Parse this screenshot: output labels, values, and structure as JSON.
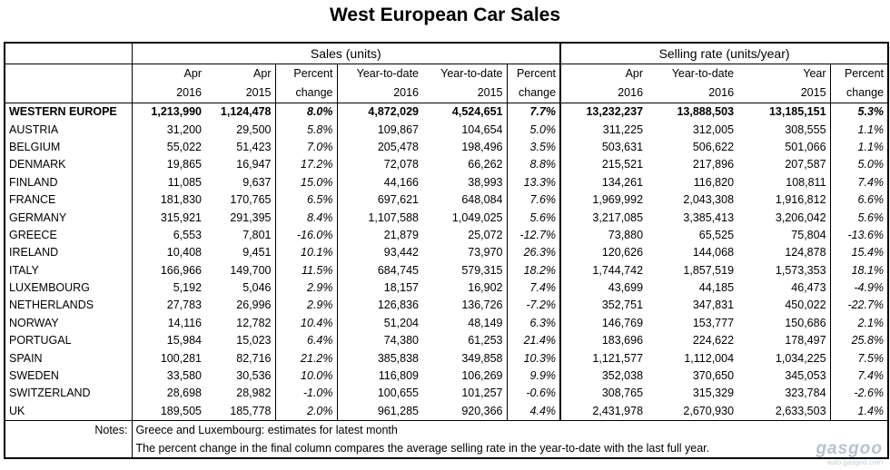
{
  "title": "West European Car Sales",
  "groups": {
    "sales": "Sales (units)",
    "selling_rate": "Selling rate (units/year)"
  },
  "headers": {
    "apr2016": [
      "Apr",
      "2016"
    ],
    "apr2015": [
      "Apr",
      "2015"
    ],
    "pct1": [
      "Percent",
      "change"
    ],
    "ytd2016": [
      "Year-to-date",
      "2016"
    ],
    "ytd2015": [
      "Year-to-date",
      "2015"
    ],
    "pct2": [
      "Percent",
      "change"
    ],
    "sr_apr2016": [
      "Apr",
      "2016"
    ],
    "sr_ytd2016": [
      "Year-to-date",
      "2016"
    ],
    "sr_year2015": [
      "Year",
      "2015"
    ],
    "pct3": [
      "Percent",
      "change"
    ]
  },
  "rows": [
    [
      "WESTERN EUROPE",
      "1,213,990",
      "1,124,478",
      "8.0%",
      "4,872,029",
      "4,524,651",
      "7.7%",
      "13,232,237",
      "13,888,503",
      "13,185,151",
      "5.3%"
    ],
    [
      "AUSTRIA",
      "31,200",
      "29,500",
      "5.8%",
      "109,867",
      "104,654",
      "5.0%",
      "311,225",
      "312,005",
      "308,555",
      "1.1%"
    ],
    [
      "BELGIUM",
      "55,022",
      "51,423",
      "7.0%",
      "205,478",
      "198,496",
      "3.5%",
      "503,631",
      "506,622",
      "501,066",
      "1.1%"
    ],
    [
      "DENMARK",
      "19,865",
      "16,947",
      "17.2%",
      "72,078",
      "66,262",
      "8.8%",
      "215,521",
      "217,896",
      "207,587",
      "5.0%"
    ],
    [
      "FINLAND",
      "11,085",
      "9,637",
      "15.0%",
      "44,166",
      "38,993",
      "13.3%",
      "134,261",
      "116,820",
      "108,811",
      "7.4%"
    ],
    [
      "FRANCE",
      "181,830",
      "170,765",
      "6.5%",
      "697,621",
      "648,084",
      "7.6%",
      "1,969,992",
      "2,043,308",
      "1,916,812",
      "6.6%"
    ],
    [
      "GERMANY",
      "315,921",
      "291,395",
      "8.4%",
      "1,107,588",
      "1,049,025",
      "5.6%",
      "3,217,085",
      "3,385,413",
      "3,206,042",
      "5.6%"
    ],
    [
      "GREECE",
      "6,553",
      "7,801",
      "-16.0%",
      "21,879",
      "25,072",
      "-12.7%",
      "73,880",
      "65,525",
      "75,804",
      "-13.6%"
    ],
    [
      "IRELAND",
      "10,408",
      "9,451",
      "10.1%",
      "93,442",
      "73,970",
      "26.3%",
      "120,626",
      "144,068",
      "124,878",
      "15.4%"
    ],
    [
      "ITALY",
      "166,966",
      "149,700",
      "11.5%",
      "684,745",
      "579,315",
      "18.2%",
      "1,744,742",
      "1,857,519",
      "1,573,353",
      "18.1%"
    ],
    [
      "LUXEMBOURG",
      "5,192",
      "5,046",
      "2.9%",
      "18,157",
      "16,902",
      "7.4%",
      "43,699",
      "44,185",
      "46,473",
      "-4.9%"
    ],
    [
      "NETHERLANDS",
      "27,783",
      "26,996",
      "2.9%",
      "126,836",
      "136,726",
      "-7.2%",
      "352,751",
      "347,831",
      "450,022",
      "-22.7%"
    ],
    [
      "NORWAY",
      "14,116",
      "12,782",
      "10.4%",
      "51,204",
      "48,149",
      "6.3%",
      "146,769",
      "153,777",
      "150,686",
      "2.1%"
    ],
    [
      "PORTUGAL",
      "15,984",
      "15,023",
      "6.4%",
      "74,380",
      "61,253",
      "21.4%",
      "183,696",
      "224,622",
      "178,497",
      "25.8%"
    ],
    [
      "SPAIN",
      "100,281",
      "82,716",
      "21.2%",
      "385,838",
      "349,858",
      "10.3%",
      "1,121,577",
      "1,112,004",
      "1,034,225",
      "7.5%"
    ],
    [
      "SWEDEN",
      "33,580",
      "30,536",
      "10.0%",
      "116,809",
      "106,269",
      "9.9%",
      "352,038",
      "370,650",
      "345,053",
      "7.4%"
    ],
    [
      "SWITZERLAND",
      "28,698",
      "28,982",
      "-1.0%",
      "100,655",
      "101,257",
      "-0.6%",
      "308,765",
      "315,329",
      "323,784",
      "-2.6%"
    ],
    [
      "UK",
      "189,505",
      "185,778",
      "2.0%",
      "961,285",
      "920,366",
      "4.4%",
      "2,431,978",
      "2,670,930",
      "2,633,503",
      "1.4%"
    ]
  ],
  "notes": {
    "label": "Notes:",
    "line1": "Greece and Luxembourg: estimates for latest month",
    "line2": "The percent change in the final column compares the average selling rate in the year-to-date with the last full year."
  },
  "watermark": {
    "logo": "gasgoo",
    "sub": "auto.gasgoo.com"
  }
}
